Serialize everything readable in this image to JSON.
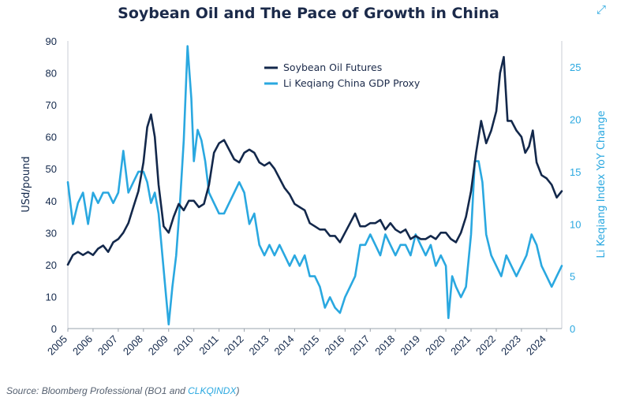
{
  "colors": {
    "soy": "#13284b",
    "gdp": "#2aa8e0",
    "axis_left": "#13284b",
    "axis_right": "#2aa8e0",
    "title": "#1b2a4a"
  },
  "icons": {
    "expand": "expand-arrows-icon"
  },
  "source": {
    "prefix": "Source: Bloomberg Professional (BO1 and ",
    "link": "CLKQINDX",
    "suffix": ")"
  },
  "chart_data": {
    "type": "line",
    "title": "Soybean Oil and The Pace of Growth in China",
    "ylabel_left": "USd/pound",
    "ylabel_right": "Li Keqiang Index YoY Change",
    "ylim_left": [
      0,
      90
    ],
    "ylim_right": [
      0,
      27.5
    ],
    "yticks_left": [
      0,
      10,
      20,
      30,
      40,
      50,
      60,
      70,
      80,
      90
    ],
    "yticks_right": [
      0,
      5,
      10,
      15,
      20,
      25
    ],
    "xlim": [
      2005.0,
      2024.6
    ],
    "xticks": [
      "2005",
      "2006",
      "2007",
      "2008",
      "2009",
      "2010",
      "2011",
      "2012",
      "2013",
      "2014",
      "2015",
      "2016",
      "2017",
      "2018",
      "2019",
      "2020",
      "2021",
      "2022",
      "2023",
      "2024"
    ],
    "grid": false,
    "legend_position": "top-center",
    "series": [
      {
        "name": "Soybean Oil Futures",
        "axis": "left",
        "x": [
          2005.0,
          2005.2,
          2005.4,
          2005.6,
          2005.8,
          2006.0,
          2006.2,
          2006.4,
          2006.6,
          2006.8,
          2007.0,
          2007.2,
          2007.4,
          2007.6,
          2007.8,
          2008.0,
          2008.15,
          2008.3,
          2008.45,
          2008.6,
          2008.8,
          2009.0,
          2009.2,
          2009.4,
          2009.6,
          2009.8,
          2010.0,
          2010.2,
          2010.4,
          2010.6,
          2010.8,
          2011.0,
          2011.2,
          2011.4,
          2011.6,
          2011.8,
          2012.0,
          2012.2,
          2012.4,
          2012.6,
          2012.8,
          2013.0,
          2013.2,
          2013.4,
          2013.6,
          2013.8,
          2014.0,
          2014.2,
          2014.4,
          2014.6,
          2014.8,
          2015.0,
          2015.2,
          2015.4,
          2015.6,
          2015.8,
          2016.0,
          2016.2,
          2016.4,
          2016.6,
          2016.8,
          2017.0,
          2017.2,
          2017.4,
          2017.6,
          2017.8,
          2018.0,
          2018.2,
          2018.4,
          2018.6,
          2018.8,
          2019.0,
          2019.2,
          2019.4,
          2019.6,
          2019.8,
          2020.0,
          2020.2,
          2020.4,
          2020.6,
          2020.8,
          2021.0,
          2021.2,
          2021.4,
          2021.6,
          2021.8,
          2022.0,
          2022.15,
          2022.3,
          2022.45,
          2022.6,
          2022.8,
          2023.0,
          2023.15,
          2023.3,
          2023.45,
          2023.6,
          2023.8,
          2024.0,
          2024.2,
          2024.4,
          2024.6
        ],
        "values": [
          20,
          23,
          24,
          23,
          24,
          23,
          25,
          26,
          24,
          27,
          28,
          30,
          33,
          38,
          43,
          52,
          63,
          67,
          60,
          45,
          32,
          30,
          35,
          39,
          37,
          40,
          40,
          38,
          39,
          45,
          55,
          58,
          59,
          56,
          53,
          52,
          55,
          56,
          55,
          52,
          51,
          52,
          50,
          47,
          44,
          42,
          39,
          38,
          37,
          33,
          32,
          31,
          31,
          29,
          29,
          27,
          30,
          33,
          36,
          32,
          32,
          33,
          33,
          34,
          31,
          33,
          31,
          30,
          31,
          28,
          29,
          28,
          28,
          29,
          28,
          30,
          30,
          28,
          27,
          30,
          35,
          43,
          55,
          65,
          58,
          62,
          68,
          80,
          85,
          65,
          65,
          62,
          60,
          55,
          57,
          62,
          52,
          48,
          47,
          45,
          41,
          43
        ]
      },
      {
        "name": "Li Keqiang China GDP Proxy",
        "axis": "right",
        "x": [
          2005.0,
          2005.2,
          2005.4,
          2005.6,
          2005.8,
          2006.0,
          2006.2,
          2006.4,
          2006.6,
          2006.8,
          2007.0,
          2007.2,
          2007.4,
          2007.6,
          2007.8,
          2008.0,
          2008.15,
          2008.3,
          2008.45,
          2008.6,
          2008.75,
          2008.9,
          2009.0,
          2009.15,
          2009.3,
          2009.45,
          2009.6,
          2009.75,
          2009.9,
          2010.0,
          2010.15,
          2010.3,
          2010.45,
          2010.6,
          2010.8,
          2011.0,
          2011.2,
          2011.4,
          2011.6,
          2011.8,
          2012.0,
          2012.2,
          2012.4,
          2012.6,
          2012.8,
          2013.0,
          2013.2,
          2013.4,
          2013.6,
          2013.8,
          2014.0,
          2014.2,
          2014.4,
          2014.6,
          2014.8,
          2015.0,
          2015.2,
          2015.4,
          2015.6,
          2015.8,
          2016.0,
          2016.2,
          2016.4,
          2016.6,
          2016.8,
          2017.0,
          2017.2,
          2017.4,
          2017.6,
          2017.8,
          2018.0,
          2018.2,
          2018.4,
          2018.6,
          2018.8,
          2019.0,
          2019.2,
          2019.4,
          2019.6,
          2019.8,
          2020.0,
          2020.1,
          2020.25,
          2020.4,
          2020.6,
          2020.8,
          2021.0,
          2021.15,
          2021.3,
          2021.45,
          2021.6,
          2021.8,
          2022.0,
          2022.2,
          2022.4,
          2022.6,
          2022.8,
          2023.0,
          2023.2,
          2023.4,
          2023.6,
          2023.8,
          2024.0,
          2024.2,
          2024.4,
          2024.6
        ],
        "values": [
          14,
          10,
          12,
          13,
          10,
          13,
          12,
          13,
          13,
          12,
          13,
          17,
          13,
          14,
          15,
          15,
          14,
          12,
          13,
          11,
          7,
          3,
          0.4,
          4,
          7,
          12,
          18,
          27,
          22,
          16,
          19,
          18,
          16,
          13,
          12,
          11,
          11,
          12,
          13,
          14,
          13,
          10,
          11,
          8,
          7,
          8,
          7,
          8,
          7,
          6,
          7,
          6,
          7,
          5,
          5,
          4,
          2,
          3,
          2,
          1.5,
          3,
          4,
          5,
          8,
          8,
          9,
          8,
          7,
          9,
          8,
          7,
          8,
          8,
          7,
          9,
          8,
          7,
          8,
          6,
          7,
          6,
          1,
          5,
          4,
          3,
          4,
          9,
          16,
          16,
          14,
          9,
          7,
          6,
          5,
          7,
          6,
          5,
          6,
          7,
          9,
          8,
          6,
          5,
          4,
          5,
          6
        ]
      }
    ]
  }
}
